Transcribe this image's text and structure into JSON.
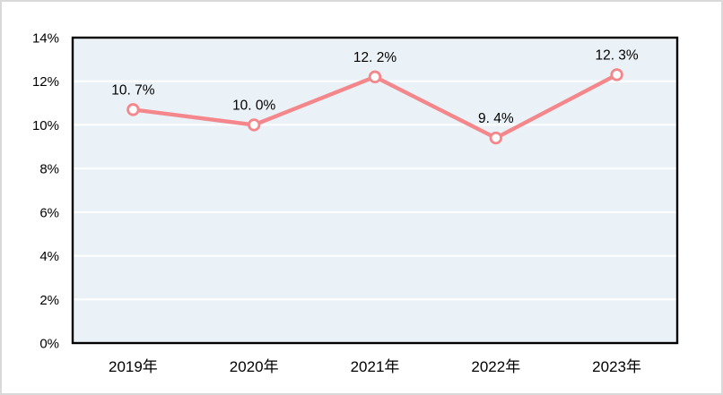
{
  "chart_data": {
    "type": "line",
    "title": "",
    "xlabel": "",
    "ylabel": "",
    "categories": [
      "2019年",
      "2020年",
      "2021年",
      "2022年",
      "2023年"
    ],
    "values": [
      10.7,
      10.0,
      12.2,
      9.4,
      12.3
    ],
    "data_labels": [
      "10. 7%",
      "10. 0%",
      "12. 2%",
      "9. 4%",
      "12. 3%"
    ],
    "ylim": [
      0,
      14
    ],
    "y_tick_step": 2,
    "y_tick_labels": [
      "0%",
      "2%",
      "4%",
      "6%",
      "8%",
      "10%",
      "12%",
      "14%"
    ],
    "grid": true,
    "legend": "none",
    "colors": {
      "line": "#f4878b",
      "marker_fill": "#ffffff",
      "plot_bg": "#ebf2f7",
      "gridline": "#ffffff",
      "plot_border": "#000000",
      "text": "#000000",
      "outer_border": "#d9d9d9",
      "outer_bg": "#ffffff"
    }
  }
}
